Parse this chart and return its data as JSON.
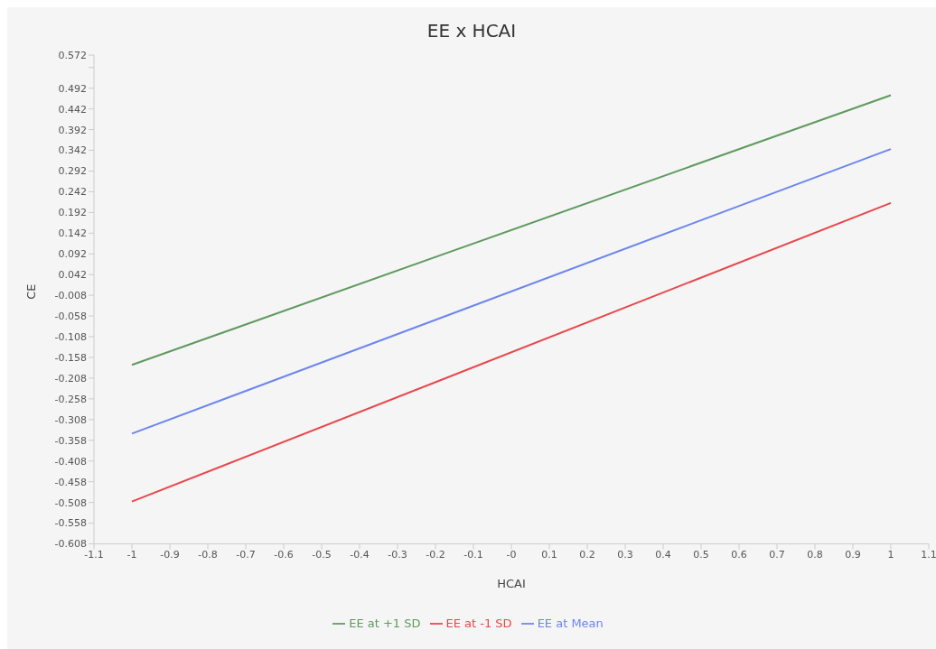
{
  "chart_data": {
    "type": "line",
    "title": "EE x HCAI",
    "xlabel": "HCAI",
    "ylabel": "CE",
    "x": [
      -1,
      1
    ],
    "series": [
      {
        "name": "EE at -1 SD",
        "color": "#e8474b",
        "values": [
          -0.506,
          0.215
        ]
      },
      {
        "name": "EE at Mean",
        "color": "#6b86ec",
        "values": [
          -0.342,
          0.345
        ]
      },
      {
        "name": "EE at +1 SD",
        "color": "#5e9a5e",
        "values": [
          -0.176,
          0.475
        ]
      }
    ],
    "xlim": [
      -1.1,
      1.1
    ],
    "xticks": [
      -1.1,
      -1,
      -0.9,
      -0.8,
      -0.7,
      -0.6,
      -0.5,
      -0.4,
      -0.3,
      -0.2,
      -0.1,
      {
        "value": 0,
        "label": "-0"
      },
      0.1,
      0.2,
      0.3,
      0.4,
      0.5,
      0.6,
      0.7,
      0.8,
      0.9,
      1,
      1.1
    ],
    "ylim": [
      -0.608,
      0.572
    ],
    "yticks": [
      -0.608,
      -0.558,
      -0.508,
      -0.458,
      -0.408,
      -0.358,
      -0.308,
      -0.258,
      -0.208,
      -0.158,
      -0.108,
      -0.058,
      -0.008,
      0.042,
      0.092,
      0.142,
      0.192,
      0.242,
      0.292,
      0.342,
      0.392,
      0.442,
      0.492,
      {
        "value": 0.542,
        "label": null
      },
      0.572
    ],
    "grid": false,
    "legend": "bottom",
    "marker": "none",
    "line_style": "solid"
  }
}
